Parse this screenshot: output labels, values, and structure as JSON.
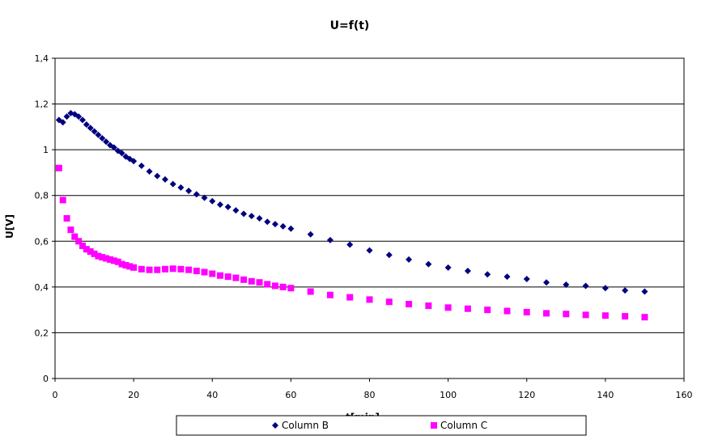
{
  "chart_data": {
    "type": "scatter",
    "title": "U=f(t)",
    "xlabel": "t[min]",
    "ylabel": "U[V]",
    "xlim": [
      0,
      160
    ],
    "ylim": [
      0,
      1.4
    ],
    "x_ticks": [
      "0",
      "20",
      "40",
      "60",
      "80",
      "100",
      "120",
      "140",
      "160"
    ],
    "y_ticks": [
      "0",
      "0,2",
      "0,4",
      "0,6",
      "0,8",
      "1",
      "1,2",
      "1,4"
    ],
    "grid": "horizontal",
    "legend_position": "bottom",
    "series": [
      {
        "name": "Column B",
        "marker": "diamond",
        "color": "#000080",
        "points": [
          [
            1,
            1.13
          ],
          [
            2,
            1.12
          ],
          [
            3,
            1.145
          ],
          [
            4,
            1.16
          ],
          [
            5,
            1.155
          ],
          [
            6,
            1.145
          ],
          [
            7,
            1.13
          ],
          [
            8,
            1.11
          ],
          [
            9,
            1.095
          ],
          [
            10,
            1.08
          ],
          [
            11,
            1.065
          ],
          [
            12,
            1.05
          ],
          [
            13,
            1.035
          ],
          [
            14,
            1.02
          ],
          [
            15,
            1.01
          ],
          [
            16,
            0.995
          ],
          [
            17,
            0.985
          ],
          [
            18,
            0.97
          ],
          [
            19,
            0.96
          ],
          [
            20,
            0.95
          ],
          [
            22,
            0.93
          ],
          [
            24,
            0.905
          ],
          [
            26,
            0.885
          ],
          [
            28,
            0.87
          ],
          [
            30,
            0.85
          ],
          [
            32,
            0.835
          ],
          [
            34,
            0.82
          ],
          [
            36,
            0.805
          ],
          [
            38,
            0.79
          ],
          [
            40,
            0.775
          ],
          [
            42,
            0.76
          ],
          [
            44,
            0.75
          ],
          [
            46,
            0.735
          ],
          [
            48,
            0.72
          ],
          [
            50,
            0.71
          ],
          [
            52,
            0.7
          ],
          [
            54,
            0.685
          ],
          [
            56,
            0.675
          ],
          [
            58,
            0.665
          ],
          [
            60,
            0.655
          ],
          [
            65,
            0.63
          ],
          [
            70,
            0.605
          ],
          [
            75,
            0.585
          ],
          [
            80,
            0.56
          ],
          [
            85,
            0.54
          ],
          [
            90,
            0.52
          ],
          [
            95,
            0.5
          ],
          [
            100,
            0.485
          ],
          [
            105,
            0.47
          ],
          [
            110,
            0.455
          ],
          [
            115,
            0.445
          ],
          [
            120,
            0.435
          ],
          [
            125,
            0.42
          ],
          [
            130,
            0.41
          ],
          [
            135,
            0.405
          ],
          [
            140,
            0.395
          ],
          [
            145,
            0.385
          ],
          [
            150,
            0.38
          ]
        ]
      },
      {
        "name": "Column C",
        "marker": "square",
        "color": "#ff00ff",
        "points": [
          [
            1,
            0.92
          ],
          [
            2,
            0.78
          ],
          [
            3,
            0.7
          ],
          [
            4,
            0.65
          ],
          [
            5,
            0.62
          ],
          [
            6,
            0.6
          ],
          [
            7,
            0.58
          ],
          [
            8,
            0.565
          ],
          [
            9,
            0.555
          ],
          [
            10,
            0.545
          ],
          [
            11,
            0.535
          ],
          [
            12,
            0.53
          ],
          [
            13,
            0.525
          ],
          [
            14,
            0.52
          ],
          [
            15,
            0.515
          ],
          [
            16,
            0.51
          ],
          [
            17,
            0.5
          ],
          [
            18,
            0.495
          ],
          [
            19,
            0.49
          ],
          [
            20,
            0.485
          ],
          [
            22,
            0.478
          ],
          [
            24,
            0.475
          ],
          [
            26,
            0.475
          ],
          [
            28,
            0.478
          ],
          [
            30,
            0.48
          ],
          [
            32,
            0.478
          ],
          [
            34,
            0.475
          ],
          [
            36,
            0.47
          ],
          [
            38,
            0.465
          ],
          [
            40,
            0.458
          ],
          [
            42,
            0.45
          ],
          [
            44,
            0.445
          ],
          [
            46,
            0.44
          ],
          [
            48,
            0.432
          ],
          [
            50,
            0.425
          ],
          [
            52,
            0.42
          ],
          [
            54,
            0.412
          ],
          [
            56,
            0.405
          ],
          [
            58,
            0.4
          ],
          [
            60,
            0.395
          ],
          [
            65,
            0.38
          ],
          [
            70,
            0.365
          ],
          [
            75,
            0.355
          ],
          [
            80,
            0.345
          ],
          [
            85,
            0.335
          ],
          [
            90,
            0.325
          ],
          [
            95,
            0.318
          ],
          [
            100,
            0.31
          ],
          [
            105,
            0.305
          ],
          [
            110,
            0.3
          ],
          [
            115,
            0.295
          ],
          [
            120,
            0.29
          ],
          [
            125,
            0.285
          ],
          [
            130,
            0.282
          ],
          [
            135,
            0.278
          ],
          [
            140,
            0.275
          ],
          [
            145,
            0.272
          ],
          [
            150,
            0.268
          ]
        ]
      }
    ]
  }
}
